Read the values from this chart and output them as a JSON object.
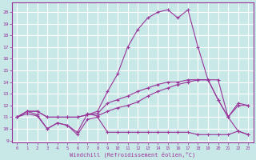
{
  "xlabel": "Windchill (Refroidissement éolien,°C)",
  "xlim": [
    -0.5,
    23.5
  ],
  "ylim": [
    8.8,
    20.8
  ],
  "yticks": [
    9,
    10,
    11,
    12,
    13,
    14,
    15,
    16,
    17,
    18,
    19,
    20
  ],
  "xticks": [
    0,
    1,
    2,
    3,
    4,
    5,
    6,
    7,
    8,
    9,
    10,
    11,
    12,
    13,
    14,
    15,
    16,
    17,
    18,
    19,
    20,
    21,
    22,
    23
  ],
  "bg_color": "#c8e8e8",
  "line_color": "#993399",
  "grid_color": "#ffffff",
  "lines": [
    {
      "x": [
        0,
        1,
        2,
        3,
        4,
        5,
        6,
        7,
        8,
        9,
        10,
        11,
        12,
        13,
        14,
        15,
        16,
        17,
        18,
        19,
        20,
        21,
        22,
        23
      ],
      "y": [
        11,
        11.3,
        11.1,
        10.0,
        10.5,
        10.3,
        9.5,
        10.8,
        11.0,
        9.7,
        9.7,
        9.7,
        9.7,
        9.7,
        9.7,
        9.7,
        9.7,
        9.7,
        9.5,
        9.5,
        9.5,
        9.5,
        9.8,
        9.5
      ]
    },
    {
      "x": [
        0,
        1,
        2,
        3,
        4,
        5,
        6,
        7,
        8,
        9,
        10,
        11,
        12,
        13,
        14,
        15,
        16,
        17,
        18,
        19,
        20,
        21,
        22,
        23
      ],
      "y": [
        11,
        11.5,
        11.2,
        10.0,
        10.5,
        10.3,
        9.7,
        11.3,
        11.1,
        11.5,
        11.8,
        12.0,
        12.3,
        12.8,
        13.2,
        13.5,
        13.8,
        14.0,
        14.2,
        14.2,
        12.5,
        11.0,
        12.0,
        12.0
      ]
    },
    {
      "x": [
        0,
        1,
        2,
        3,
        4,
        5,
        6,
        7,
        8,
        9,
        10,
        11,
        12,
        13,
        14,
        15,
        16,
        17,
        18,
        19,
        20,
        21,
        22,
        23
      ],
      "y": [
        11,
        11.5,
        11.5,
        11.0,
        11.0,
        11.0,
        11.0,
        11.2,
        11.3,
        12.2,
        12.5,
        12.8,
        13.2,
        13.5,
        13.8,
        14.0,
        14.0,
        14.2,
        14.2,
        14.2,
        12.5,
        11.0,
        12.2,
        12.0
      ]
    },
    {
      "x": [
        0,
        1,
        2,
        3,
        4,
        5,
        6,
        7,
        8,
        9,
        10,
        11,
        12,
        13,
        14,
        15,
        16,
        17,
        18,
        19,
        20,
        21,
        22,
        23
      ],
      "y": [
        11,
        11.5,
        11.5,
        11.0,
        11.0,
        11.0,
        11.0,
        11.2,
        11.5,
        13.2,
        14.7,
        17.0,
        18.5,
        19.5,
        20.0,
        20.2,
        19.5,
        20.2,
        17.0,
        14.2,
        14.2,
        11.0,
        9.8,
        9.5
      ]
    }
  ]
}
